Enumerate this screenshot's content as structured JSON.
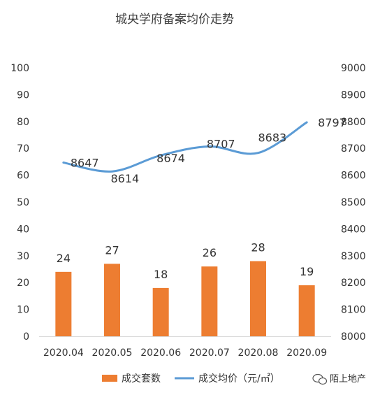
{
  "chart_data": {
    "type": "bar",
    "title": "城央学府备案均价走势",
    "categories": [
      "2020.04",
      "2020.05",
      "2020.06",
      "2020.07",
      "2020.08",
      "2020.09"
    ],
    "series": [
      {
        "name": "成交套数",
        "type": "bar",
        "axis": "left",
        "color": "#ED7D31",
        "values": [
          24,
          27,
          18,
          26,
          28,
          19
        ]
      },
      {
        "name": "成交均价（元/㎡）",
        "type": "line",
        "axis": "right",
        "color": "#5B9BD5",
        "smooth": true,
        "values": [
          8647,
          8614,
          8674,
          8707,
          8683,
          8797
        ]
      }
    ],
    "y_left": {
      "min": 0,
      "max": 100,
      "step": 10,
      "ticks": [
        "0",
        "10",
        "20",
        "30",
        "40",
        "50",
        "60",
        "70",
        "80",
        "90",
        "100"
      ]
    },
    "y_right": {
      "min": 8000,
      "max": 9000,
      "step": 100,
      "ticks": [
        "8000",
        "8100",
        "8200",
        "8300",
        "8400",
        "8500",
        "8600",
        "8700",
        "8800",
        "8900",
        "9000"
      ]
    },
    "grid": false,
    "legend_position": "bottom",
    "data_labels": true
  },
  "watermark": {
    "text": "陌上地产",
    "icon": "wechat-icon"
  }
}
